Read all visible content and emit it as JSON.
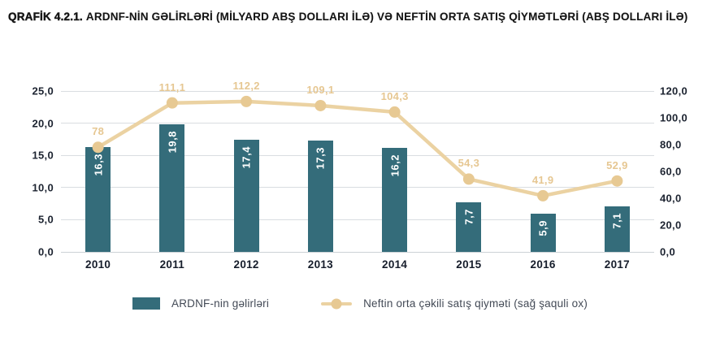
{
  "title": {
    "prefix": "QRAFİK 4.2.1.",
    "text": "ARDNF-NİN GƏLİRLƏRİ (MİLYARD  ABŞ DOLLARI İLƏ) VƏ NEFTİN ORTA SATIŞ QİYMƏTLƏRİ (ABŞ DOLLARI İLƏ)"
  },
  "chart_data": {
    "type": "bar+line combo",
    "categories": [
      "2010",
      "2011",
      "2012",
      "2013",
      "2014",
      "2015",
      "2016",
      "2017"
    ],
    "series": [
      {
        "name": "ARDNF-nin gəlirləri",
        "type": "bar",
        "axis": "left",
        "values": [
          16.3,
          19.8,
          17.4,
          17.3,
          16.2,
          7.7,
          5.9,
          7.1
        ],
        "labels": [
          "16,3",
          "19,8",
          "17,4",
          "17,3",
          "16,2",
          "7,7",
          "5,9",
          "7,1"
        ],
        "color": "#346c7a",
        "label_color": "#ffffff"
      },
      {
        "name": "Neftin orta çəkili satış qiyməti (sağ şaquli ox)",
        "type": "line",
        "axis": "right",
        "values": [
          78,
          111.1,
          112.2,
          109.1,
          104.3,
          54.3,
          41.9,
          52.9
        ],
        "labels": [
          "78",
          "111,1",
          "112,2",
          "109,1",
          "104,3",
          "54,3",
          "41,9",
          "52,9"
        ],
        "color": "#ebd2a2",
        "marker_color": "#e7c993",
        "label_color": "#e6c792"
      }
    ],
    "left_axis": {
      "min": 0,
      "max": 25,
      "ticks": [
        "25,0",
        "20,0",
        "15,0",
        "10,0",
        "5,0",
        "0,0"
      ]
    },
    "right_axis": {
      "min": 0,
      "max": 120,
      "ticks": [
        "120,0",
        "100,0",
        "80,0",
        "60,0",
        "40,0",
        "20,0",
        "0,0"
      ]
    },
    "grid": "horizontal gridlines at left-axis ticks",
    "legend_position": "bottom-center"
  },
  "legend": {
    "items": [
      {
        "label": "ARDNF-nin gəlirləri",
        "swatch": "bar"
      },
      {
        "label": "Neftin orta çəkili satış qiyməti (sağ şaquli ox)",
        "swatch": "line"
      }
    ]
  },
  "colors": {
    "bar": "#346c7a",
    "line": "#ebd2a2",
    "line_marker": "#e7c993",
    "line_label_text": "#e6c792",
    "bar_label_text": "#ffffff",
    "gridline": "#d9dde1",
    "axis_tick_text": "#1c2330",
    "x_label_text": "#161d2b",
    "legend_text": "#434a56",
    "title_text": "#151515",
    "background": "#ffffff"
  }
}
